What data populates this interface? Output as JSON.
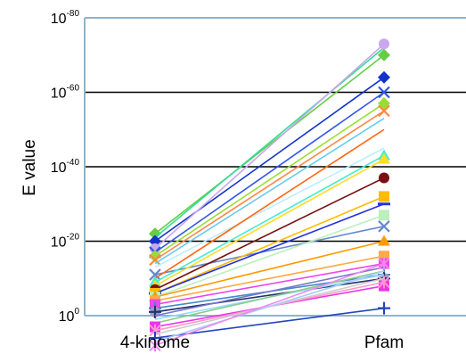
{
  "chart_data": {
    "type": "line",
    "ylabel": "E value",
    "xlabel": "",
    "categories": [
      "4-kinome",
      "Pfam"
    ],
    "y_exponents": [
      0,
      20,
      40,
      60,
      80
    ],
    "y_base": "10",
    "ylim_exponent": [
      0,
      80
    ],
    "y_scale": "log",
    "grid": "horizontal",
    "gridline_color": "#000000",
    "frame_color": "#8fb4cc",
    "series": [
      {
        "values": [
          22,
          70
        ],
        "color": "#66cc44",
        "marker": "diamond"
      },
      {
        "values": [
          21,
          72
        ],
        "color": "#33dd99",
        "marker": "none"
      },
      {
        "values": [
          20,
          64
        ],
        "color": "#1133cc",
        "marker": "diamond"
      },
      {
        "values": [
          18,
          73
        ],
        "color": "#c8a8ee",
        "marker": "circle"
      },
      {
        "values": [
          17,
          60
        ],
        "color": "#3355ee",
        "marker": "cross-x"
      },
      {
        "values": [
          16,
          57
        ],
        "color": "#99dd33",
        "marker": "diamond"
      },
      {
        "values": [
          15,
          55
        ],
        "color": "#ff8844",
        "marker": "cross-x"
      },
      {
        "values": [
          14,
          53
        ],
        "color": "#66ccee",
        "marker": "none"
      },
      {
        "values": [
          13,
          45
        ],
        "color": "#bbeeff",
        "marker": "none"
      },
      {
        "values": [
          11,
          24
        ],
        "color": "#6688cc",
        "marker": "cross-x"
      },
      {
        "values": [
          10,
          50
        ],
        "color": "#ff6611",
        "marker": "none"
      },
      {
        "values": [
          9,
          43
        ],
        "color": "#44eecc",
        "marker": "triangle"
      },
      {
        "values": [
          8,
          42
        ],
        "color": "#ffdd22",
        "marker": "triangle"
      },
      {
        "values": [
          7,
          37
        ],
        "color": "#771111",
        "marker": "circle"
      },
      {
        "values": [
          6,
          32
        ],
        "color": "#ffbb00",
        "marker": "square"
      },
      {
        "values": [
          6,
          30
        ],
        "color": "#2233dd",
        "marker": "dash"
      },
      {
        "values": [
          5,
          27
        ],
        "color": "#bbf0bb",
        "marker": "square"
      },
      {
        "values": [
          5,
          20
        ],
        "color": "#ff9900",
        "marker": "triangle"
      },
      {
        "values": [
          4,
          16
        ],
        "color": "#ffaa44",
        "marker": "square"
      },
      {
        "values": [
          3,
          14
        ],
        "color": "#ee44ee",
        "marker": "square"
      },
      {
        "values": [
          2,
          11
        ],
        "color": "#4488cc",
        "marker": "cross"
      },
      {
        "values": [
          1,
          10
        ],
        "color": "#9999cc",
        "marker": "circle"
      },
      {
        "values": [
          1,
          10
        ],
        "color": "#223366",
        "marker": "cross"
      },
      {
        "values": [
          0,
          13
        ],
        "color": "#7777cc",
        "marker": "none"
      },
      {
        "values": [
          -1,
          11
        ],
        "color": "#99ddff",
        "marker": "none"
      },
      {
        "values": [
          -2,
          12
        ],
        "color": "#88cc88",
        "marker": "none"
      },
      {
        "values": [
          -3,
          8
        ],
        "color": "#ee33ee",
        "marker": "square"
      },
      {
        "values": [
          -4,
          9
        ],
        "color": "#ff99cc",
        "marker": "star"
      },
      {
        "values": [
          -5,
          10
        ],
        "color": "#cccccc",
        "marker": "none"
      },
      {
        "values": [
          -6,
          2
        ],
        "color": "#2244bb",
        "marker": "cross"
      },
      {
        "values": [
          -7,
          12
        ],
        "color": "#aaccff",
        "marker": "none"
      },
      {
        "values": [
          -8,
          14
        ],
        "color": "#ee88ee",
        "marker": "star"
      }
    ]
  }
}
